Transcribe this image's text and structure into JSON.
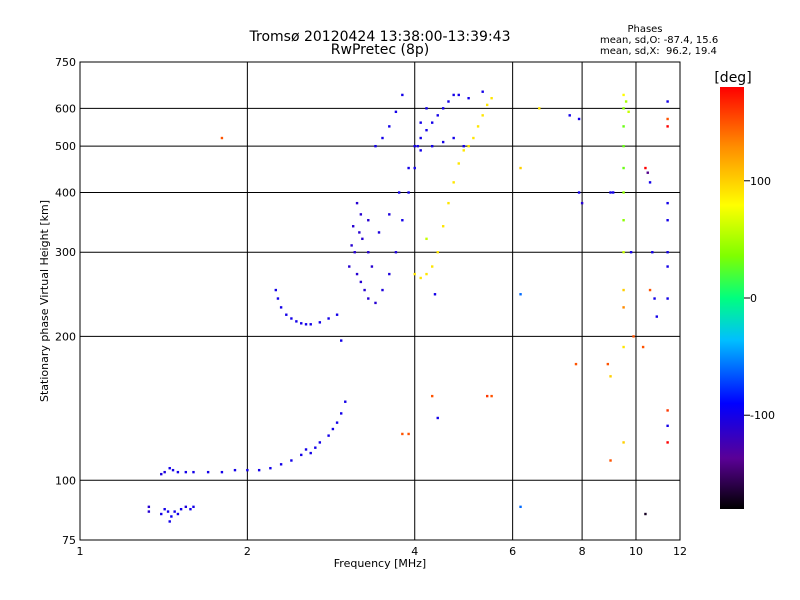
{
  "chart_data": {
    "type": "scatter",
    "title": "Tromsø 20120424 13:38:00-13:39:43",
    "subtitle": "RwPretec (8p)",
    "phases_box": {
      "heading": "Phases",
      "line1": "mean, sd,O: -87.4, 15.6",
      "line2": "mean, sd,X:  96.2, 19.4"
    },
    "xlabel": "Frequency [MHz]",
    "ylabel": "Stationary phase Virtual Height [km]",
    "x_scale": "log",
    "y_scale": "log",
    "xlim": [
      1,
      12
    ],
    "ylim": [
      75,
      750
    ],
    "x_ticks": [
      1,
      2,
      4,
      6,
      8,
      10,
      12
    ],
    "x_tick_labels": [
      "1",
      "2",
      "4",
      "6",
      "8",
      "10",
      "12"
    ],
    "y_ticks": [
      75,
      100,
      200,
      300,
      400,
      500,
      600,
      750
    ],
    "y_tick_labels": [
      "75",
      "100",
      "200",
      "300",
      "400",
      "500",
      "600",
      "750"
    ],
    "grid": true,
    "colorbar": {
      "label": "[deg]",
      "range": [
        -180,
        180
      ],
      "ticks": [
        100,
        0,
        -100
      ],
      "tick_labels": [
        "100",
        "0",
        "-100"
      ]
    },
    "series": [
      {
        "points": [
          [
            1.33,
            88,
            -110
          ],
          [
            1.33,
            86,
            -110
          ],
          [
            1.4,
            85,
            -100
          ],
          [
            1.42,
            87,
            -100
          ],
          [
            1.44,
            86,
            -100
          ],
          [
            1.46,
            84,
            -95
          ],
          [
            1.48,
            86,
            -100
          ],
          [
            1.5,
            85,
            -100
          ],
          [
            1.52,
            87,
            -100
          ],
          [
            1.55,
            88,
            -105
          ],
          [
            1.58,
            87,
            -100
          ],
          [
            1.6,
            88,
            -100
          ],
          [
            1.45,
            82,
            -100
          ],
          [
            1.4,
            103,
            -105
          ],
          [
            1.42,
            104,
            -105
          ],
          [
            1.45,
            106,
            -100
          ],
          [
            1.47,
            105,
            -100
          ],
          [
            1.5,
            104,
            -100
          ],
          [
            1.55,
            104,
            -100
          ],
          [
            1.6,
            104,
            -100
          ],
          [
            1.7,
            104,
            -100
          ],
          [
            1.8,
            104,
            -100
          ],
          [
            1.9,
            105,
            -100
          ],
          [
            2.0,
            105,
            -100
          ],
          [
            2.1,
            105,
            -100
          ],
          [
            2.2,
            106,
            -100
          ],
          [
            2.3,
            108,
            -100
          ],
          [
            2.4,
            110,
            -100
          ],
          [
            2.5,
            113,
            -100
          ],
          [
            2.55,
            116,
            -100
          ],
          [
            2.6,
            114,
            -100
          ],
          [
            2.65,
            117,
            -100
          ],
          [
            2.7,
            120,
            -100
          ],
          [
            2.8,
            124,
            -100
          ],
          [
            2.85,
            128,
            -100
          ],
          [
            2.9,
            132,
            -100
          ],
          [
            2.95,
            138,
            -100
          ],
          [
            3.0,
            146,
            -100
          ],
          [
            2.25,
            250,
            -100
          ],
          [
            2.27,
            240,
            -100
          ],
          [
            2.3,
            230,
            -100
          ],
          [
            2.35,
            222,
            -100
          ],
          [
            2.4,
            218,
            -100
          ],
          [
            2.45,
            215,
            -100
          ],
          [
            2.5,
            213,
            -100
          ],
          [
            2.55,
            212,
            -100
          ],
          [
            2.6,
            212,
            -100
          ],
          [
            2.7,
            214,
            -100
          ],
          [
            2.8,
            218,
            -100
          ],
          [
            2.9,
            222,
            -100
          ],
          [
            2.95,
            196,
            -100
          ],
          [
            3.05,
            280,
            -110
          ],
          [
            3.08,
            310,
            -110
          ],
          [
            3.1,
            340,
            -110
          ],
          [
            3.12,
            300,
            -110
          ],
          [
            3.15,
            270,
            -110
          ],
          [
            3.18,
            330,
            -110
          ],
          [
            3.2,
            260,
            -110
          ],
          [
            3.22,
            320,
            -110
          ],
          [
            3.25,
            250,
            -110
          ],
          [
            3.3,
            300,
            -110
          ],
          [
            3.3,
            240,
            -110
          ],
          [
            3.35,
            280,
            -110
          ],
          [
            3.4,
            235,
            -110
          ],
          [
            3.5,
            250,
            -105
          ],
          [
            3.6,
            270,
            -105
          ],
          [
            3.7,
            300,
            -105
          ],
          [
            3.8,
            350,
            -100
          ],
          [
            3.9,
            400,
            -100
          ],
          [
            4.0,
            450,
            -100
          ],
          [
            4.05,
            500,
            -100
          ],
          [
            3.15,
            380,
            -110
          ],
          [
            3.2,
            360,
            -110
          ],
          [
            3.3,
            350,
            -110
          ],
          [
            3.45,
            330,
            -105
          ],
          [
            3.6,
            360,
            -105
          ],
          [
            3.75,
            400,
            -100
          ],
          [
            3.9,
            450,
            -100
          ],
          [
            4.0,
            500,
            -100
          ],
          [
            4.1,
            560,
            -100
          ],
          [
            4.2,
            600,
            -100
          ],
          [
            3.4,
            500,
            -100
          ],
          [
            3.5,
            520,
            -100
          ],
          [
            3.6,
            550,
            -100
          ],
          [
            3.7,
            590,
            -100
          ],
          [
            3.8,
            640,
            -100
          ],
          [
            4.1,
            520,
            -100
          ],
          [
            4.2,
            540,
            -100
          ],
          [
            4.3,
            560,
            -100
          ],
          [
            4.4,
            580,
            -100
          ],
          [
            4.5,
            600,
            -100
          ],
          [
            4.6,
            620,
            -100
          ],
          [
            4.7,
            640,
            -100
          ],
          [
            4.8,
            640,
            -100
          ],
          [
            5.0,
            630,
            -100
          ],
          [
            5.3,
            650,
            -100
          ],
          [
            4.1,
            490,
            -100
          ],
          [
            4.3,
            500,
            -100
          ],
          [
            4.5,
            510,
            -100
          ],
          [
            4.7,
            520,
            -100
          ],
          [
            4.9,
            500,
            -100
          ],
          [
            4.0,
            270,
            90
          ],
          [
            4.1,
            265,
            90
          ],
          [
            4.2,
            270,
            90
          ],
          [
            4.3,
            280,
            90
          ],
          [
            4.4,
            300,
            90
          ],
          [
            4.5,
            340,
            90
          ],
          [
            4.6,
            380,
            90
          ],
          [
            4.7,
            420,
            90
          ],
          [
            4.8,
            460,
            90
          ],
          [
            4.9,
            490,
            90
          ],
          [
            5.0,
            500,
            90
          ],
          [
            5.1,
            520,
            90
          ],
          [
            5.2,
            550,
            90
          ],
          [
            5.3,
            580,
            90
          ],
          [
            5.4,
            610,
            90
          ],
          [
            5.5,
            630,
            90
          ],
          [
            4.2,
            320,
            60
          ],
          [
            1.8,
            520,
            150
          ],
          [
            3.8,
            125,
            150
          ],
          [
            3.9,
            125,
            150
          ],
          [
            4.3,
            150,
            150
          ],
          [
            5.4,
            150,
            160
          ],
          [
            5.5,
            150,
            150
          ],
          [
            4.35,
            245,
            -100
          ],
          [
            4.4,
            135,
            -100
          ],
          [
            6.2,
            450,
            100
          ],
          [
            6.2,
            245,
            -60
          ],
          [
            6.2,
            88,
            -60
          ],
          [
            6.7,
            600,
            90
          ],
          [
            7.8,
            175,
            150
          ],
          [
            7.9,
            400,
            -100
          ],
          [
            8.0,
            380,
            -110
          ],
          [
            7.6,
            580,
            -100
          ],
          [
            7.9,
            570,
            -100
          ],
          [
            8.9,
            175,
            150
          ],
          [
            9.0,
            165,
            100
          ],
          [
            9.0,
            110,
            150
          ],
          [
            9.0,
            400,
            -100
          ],
          [
            9.1,
            400,
            -100
          ],
          [
            9.5,
            640,
            80
          ],
          [
            9.5,
            600,
            40
          ],
          [
            9.5,
            550,
            30
          ],
          [
            9.5,
            500,
            30
          ],
          [
            9.5,
            450,
            30
          ],
          [
            9.5,
            400,
            40
          ],
          [
            9.5,
            350,
            40
          ],
          [
            9.5,
            300,
            60
          ],
          [
            9.5,
            250,
            100
          ],
          [
            9.5,
            230,
            130
          ],
          [
            9.5,
            190,
            90
          ],
          [
            9.5,
            120,
            100
          ],
          [
            9.6,
            620,
            50
          ],
          [
            9.7,
            590,
            60
          ],
          [
            9.8,
            300,
            -100
          ],
          [
            9.9,
            200,
            150
          ],
          [
            10.3,
            190,
            150
          ],
          [
            10.4,
            450,
            180
          ],
          [
            10.5,
            440,
            -140
          ],
          [
            10.6,
            420,
            -100
          ],
          [
            10.7,
            300,
            -100
          ],
          [
            10.8,
            240,
            -100
          ],
          [
            10.9,
            220,
            -100
          ],
          [
            10.6,
            250,
            150
          ],
          [
            10.4,
            85,
            -170
          ],
          [
            11.4,
            620,
            -100
          ],
          [
            11.4,
            570,
            150
          ],
          [
            11.4,
            550,
            180
          ],
          [
            11.4,
            380,
            -100
          ],
          [
            11.4,
            350,
            -100
          ],
          [
            11.4,
            300,
            -100
          ],
          [
            11.4,
            280,
            -100
          ],
          [
            11.4,
            240,
            -100
          ],
          [
            11.4,
            140,
            160
          ],
          [
            11.4,
            120,
            180
          ],
          [
            11.4,
            130,
            -100
          ]
        ]
      }
    ]
  }
}
